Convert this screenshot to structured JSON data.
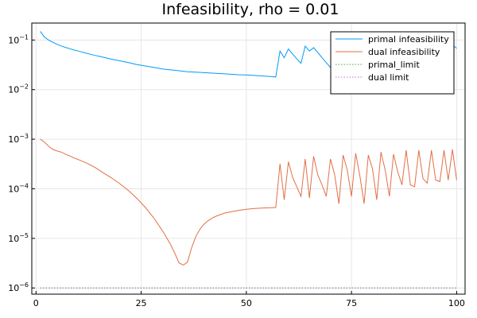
{
  "chart_data": {
    "type": "line",
    "title": "Infeasibility, rho = 0.01",
    "xlabel": "",
    "ylabel": "",
    "xlim": [
      -1,
      102
    ],
    "ylim": [
      7.5e-07,
      0.22
    ],
    "yscale": "log",
    "grid": true,
    "legend_position": "top-right",
    "x_ticks": [
      {
        "value": 0,
        "label": "0"
      },
      {
        "value": 25,
        "label": "25"
      },
      {
        "value": 50,
        "label": "50"
      },
      {
        "value": 75,
        "label": "75"
      },
      {
        "value": 100,
        "label": "100"
      }
    ],
    "y_ticks": [
      {
        "value": 1e-06,
        "base": "10",
        "exp": "−6"
      },
      {
        "value": 1e-05,
        "base": "10",
        "exp": "−5"
      },
      {
        "value": 0.0001,
        "base": "10",
        "exp": "−4"
      },
      {
        "value": 0.001,
        "base": "10",
        "exp": "−3"
      },
      {
        "value": 0.01,
        "base": "10",
        "exp": "−2"
      },
      {
        "value": 0.1,
        "base": "10",
        "exp": "−1"
      }
    ],
    "series": [
      {
        "name": "primal infeasibility",
        "color": "#009af9",
        "dash": "solid",
        "x": [
          1,
          2,
          3,
          4,
          5,
          6,
          7,
          8,
          9,
          10,
          12,
          14,
          16,
          18,
          20,
          22,
          24,
          26,
          28,
          30,
          32,
          34,
          36,
          38,
          40,
          42,
          44,
          46,
          48,
          50,
          52,
          54,
          56,
          57,
          58,
          59,
          60,
          61,
          62,
          63,
          64,
          65,
          66,
          67,
          68,
          69,
          70,
          71,
          72,
          73,
          74,
          75,
          76,
          77,
          78,
          79,
          80,
          81,
          82,
          83,
          84,
          85,
          86,
          87,
          88,
          89,
          90,
          91,
          92,
          93,
          94,
          95,
          96,
          97,
          98,
          99,
          100
        ],
        "y": [
          0.15,
          0.115,
          0.1,
          0.09,
          0.082,
          0.076,
          0.071,
          0.067,
          0.063,
          0.06,
          0.054,
          0.049,
          0.045,
          0.041,
          0.038,
          0.035,
          0.032,
          0.03,
          0.028,
          0.026,
          0.025,
          0.024,
          0.023,
          0.0225,
          0.022,
          0.0215,
          0.021,
          0.0205,
          0.02,
          0.0198,
          0.0193,
          0.0188,
          0.0183,
          0.018,
          0.06,
          0.044,
          0.066,
          0.052,
          0.042,
          0.034,
          0.075,
          0.06,
          0.07,
          0.056,
          0.044,
          0.035,
          0.028,
          0.06,
          0.048,
          0.062,
          0.05,
          0.04,
          0.033,
          0.06,
          0.05,
          0.062,
          0.055,
          0.045,
          0.06,
          0.05,
          0.042,
          0.058,
          0.064,
          0.052,
          0.068,
          0.055,
          0.06,
          0.052,
          0.07,
          0.058,
          0.09,
          0.065,
          0.075,
          0.06,
          0.09,
          0.08,
          0.068
        ]
      },
      {
        "name": "dual infeasibility",
        "color": "#e26f46",
        "dash": "solid",
        "x": [
          1,
          2,
          3,
          4,
          5,
          6,
          7,
          8,
          9,
          10,
          12,
          14,
          16,
          18,
          20,
          22,
          24,
          26,
          28,
          30,
          31,
          32,
          33,
          34,
          35,
          36,
          37,
          38,
          39,
          40,
          41,
          42,
          43,
          44,
          45,
          46,
          48,
          50,
          52,
          54,
          56,
          57,
          58,
          59,
          60,
          61,
          62,
          63,
          64,
          65,
          66,
          67,
          68,
          69,
          70,
          71,
          72,
          73,
          74,
          75,
          76,
          77,
          78,
          79,
          80,
          81,
          82,
          83,
          84,
          85,
          86,
          87,
          88,
          89,
          90,
          91,
          92,
          93,
          94,
          95,
          96,
          97,
          98,
          99,
          100
        ],
        "y": [
          0.001,
          0.00088,
          0.00072,
          0.00062,
          0.00058,
          0.00055,
          0.0005,
          0.00046,
          0.00042,
          0.00039,
          0.00033,
          0.00027,
          0.00021,
          0.000165,
          0.000125,
          9.2e-05,
          6.4e-05,
          4.2e-05,
          2.6e-05,
          1.45e-05,
          1.05e-05,
          7.5e-06,
          5e-06,
          3.2e-06,
          2.9e-06,
          3.3e-06,
          6.5e-06,
          1.1e-05,
          1.55e-05,
          1.95e-05,
          2.3e-05,
          2.6e-05,
          2.85e-05,
          3.05e-05,
          3.25e-05,
          3.4e-05,
          3.65e-05,
          3.85e-05,
          4e-05,
          4.1e-05,
          4.15e-05,
          4.2e-05,
          0.00032,
          6e-05,
          0.00035,
          0.00017,
          0.00011,
          7e-05,
          0.0004,
          6.5e-05,
          0.00045,
          0.00019,
          0.00012,
          7e-05,
          0.0004,
          0.00019,
          5e-05,
          0.00048,
          0.00024,
          7e-05,
          0.00052,
          0.00018,
          5e-05,
          0.00048,
          0.00025,
          6e-05,
          0.00055,
          0.00024,
          7e-05,
          0.0005,
          0.00022,
          0.00012,
          0.0006,
          0.00012,
          0.00011,
          0.0006,
          0.00016,
          0.00013,
          0.0006,
          0.00015,
          0.00014,
          0.0006,
          0.00015,
          0.00062,
          0.00015
        ]
      },
      {
        "name": "primal_limit",
        "color": "#3da44d",
        "dash": "dotted",
        "x": [
          1,
          100
        ],
        "y": [
          1e-06,
          1e-06
        ]
      },
      {
        "name": "dual limit",
        "color": "#c271d2",
        "dash": "dotted",
        "x": [
          1,
          100
        ],
        "y": [
          1e-06,
          1e-06
        ]
      }
    ]
  }
}
